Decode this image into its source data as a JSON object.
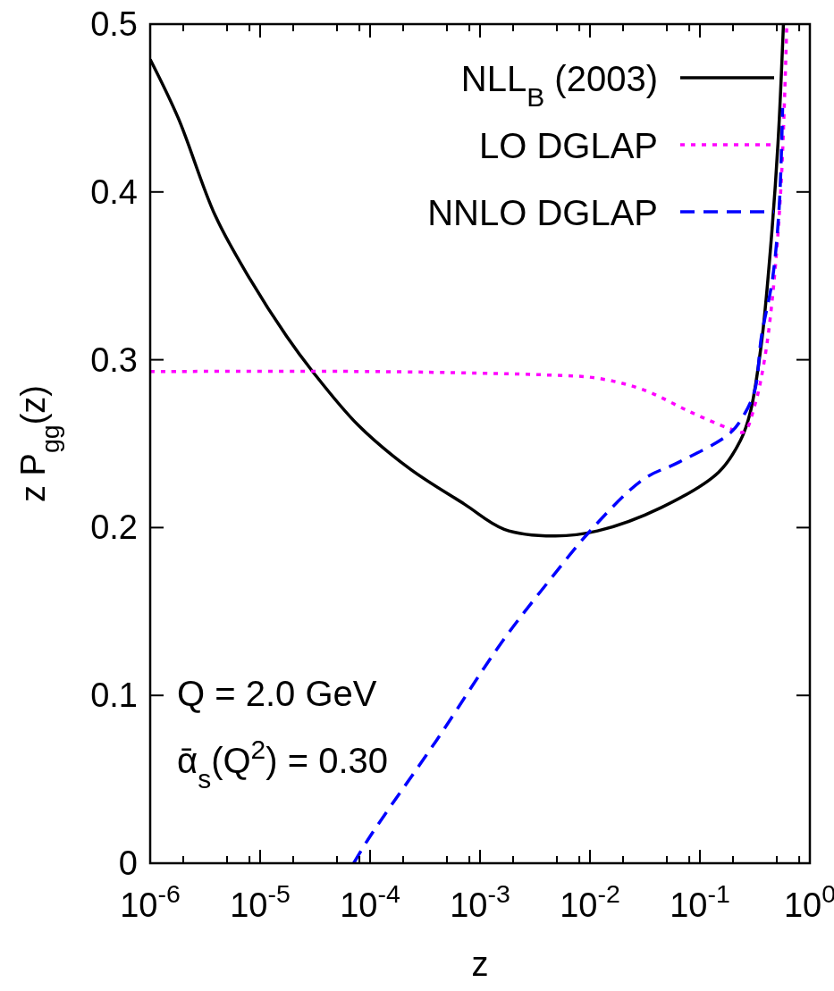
{
  "chart_data": {
    "type": "line",
    "xlabel": "z",
    "ylabel": "z P$_{gg}$(z)",
    "log": "x",
    "legend": "top right",
    "xlim": [
      1e-06,
      1
    ],
    "ylim": [
      0,
      0.5
    ],
    "xticks": [
      {
        "value": 1e-06,
        "label": "10$^{-6}$"
      },
      {
        "value": 2e-06,
        "label": null
      },
      {
        "value": 5e-06,
        "label": null
      },
      {
        "value": 8e-06,
        "label": null
      },
      {
        "value": 1e-05,
        "label": "10$^{-5}$"
      },
      {
        "value": 2e-05,
        "label": null
      },
      {
        "value": 5e-05,
        "label": null
      },
      {
        "value": 8e-05,
        "label": null
      },
      {
        "value": 0.0001,
        "label": "10$^{-4}$"
      },
      {
        "value": 0.0002,
        "label": null
      },
      {
        "value": 0.0005,
        "label": null
      },
      {
        "value": 0.0008,
        "label": null
      },
      {
        "value": 0.001,
        "label": "10$^{-3}$"
      },
      {
        "value": 0.002,
        "label": null
      },
      {
        "value": 0.005,
        "label": null
      },
      {
        "value": 0.008,
        "label": null
      },
      {
        "value": 0.01,
        "label": "10$^{-2}$"
      },
      {
        "value": 0.02,
        "label": null
      },
      {
        "value": 0.05,
        "label": null
      },
      {
        "value": 0.08,
        "label": null
      },
      {
        "value": 0.1,
        "label": "10$^{-1}$"
      },
      {
        "value": 0.2,
        "label": null
      },
      {
        "value": 0.5,
        "label": null
      },
      {
        "value": 0.8,
        "label": null
      },
      {
        "value": 1,
        "label": "10$^{0}$"
      }
    ],
    "yticks": [
      0,
      0.1,
      0.2,
      0.3,
      0.4,
      0.5
    ],
    "annotations": [
      "Q = 2.0 GeV",
      "ᾱ$_{s}$(Q$^{2}$) = 0.30"
    ],
    "series": [
      {
        "name": "NLL$_{B}$ (2003)",
        "color": "#000000",
        "line_style": "solid",
        "x": [
          1e-06,
          1.8e-06,
          3.9e-06,
          8.1e-06,
          1.74e-05,
          3e-05,
          7.8e-05,
          0.00023,
          0.00072,
          0.00166,
          0.0047,
          0.0117,
          0.0447,
          0.148,
          0.234,
          0.288,
          0.363,
          0.437,
          0.513,
          0.575
        ],
        "values": [
          0.479,
          0.444,
          0.386,
          0.348,
          0.314,
          0.293,
          0.261,
          0.235,
          0.214,
          0.199,
          0.195,
          0.198,
          0.212,
          0.233,
          0.252,
          0.269,
          0.31,
          0.365,
          0.429,
          0.5
        ]
      },
      {
        "name": "LO DGLAP",
        "color": "#ff00ff",
        "line_style": "dotted",
        "x": [
          1e-06,
          0.0001,
          0.001,
          0.0038,
          0.0117,
          0.0309,
          0.0813,
          0.186,
          0.251,
          0.316,
          0.389,
          0.468,
          0.55,
          0.617
        ],
        "values": [
          0.293,
          0.293,
          0.292,
          0.291,
          0.289,
          0.282,
          0.269,
          0.259,
          0.257,
          0.273,
          0.301,
          0.344,
          0.407,
          0.5
        ]
      },
      {
        "name": "NNLO DGLAP",
        "color": "#0000ff",
        "line_style": "dashed",
        "x": [
          7.1e-05,
          0.0001,
          0.0004,
          0.00155,
          0.0041,
          0.0107,
          0.0309,
          0.0646,
          0.186,
          0.251,
          0.316,
          0.363,
          0.457,
          0.525,
          0.565
        ],
        "values": [
          0,
          0.016,
          0.073,
          0.131,
          0.167,
          0.2,
          0.229,
          0.239,
          0.256,
          0.267,
          0.282,
          0.314,
          0.348,
          0.39,
          0.45
        ]
      }
    ]
  }
}
